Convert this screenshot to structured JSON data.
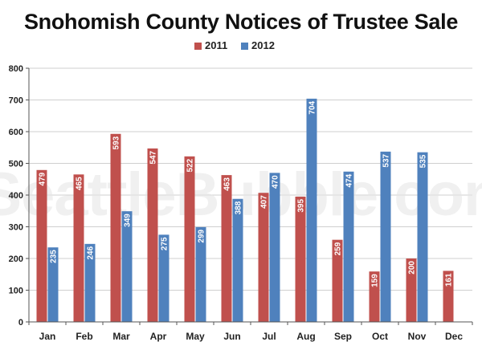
{
  "chart_data": {
    "type": "bar",
    "title": "Snohomish County Notices of Trustee Sale",
    "watermark": "SeattleBubble.com",
    "categories": [
      "Jan",
      "Feb",
      "Mar",
      "Apr",
      "May",
      "Jun",
      "Jul",
      "Aug",
      "Sep",
      "Oct",
      "Nov",
      "Dec"
    ],
    "series": [
      {
        "name": "2011",
        "color": "#c0504d",
        "values": [
          479,
          465,
          593,
          547,
          522,
          463,
          407,
          395,
          259,
          159,
          200,
          161
        ]
      },
      {
        "name": "2012",
        "color": "#4f81bd",
        "values": [
          235,
          246,
          349,
          275,
          299,
          388,
          470,
          704,
          474,
          537,
          535,
          null
        ]
      }
    ],
    "yticks": [
      0,
      100,
      200,
      300,
      400,
      500,
      600,
      700,
      800
    ],
    "ylim": [
      0,
      800
    ],
    "grid": true,
    "legend_position": "top-center",
    "data_labels": "inside-top-vertical"
  }
}
